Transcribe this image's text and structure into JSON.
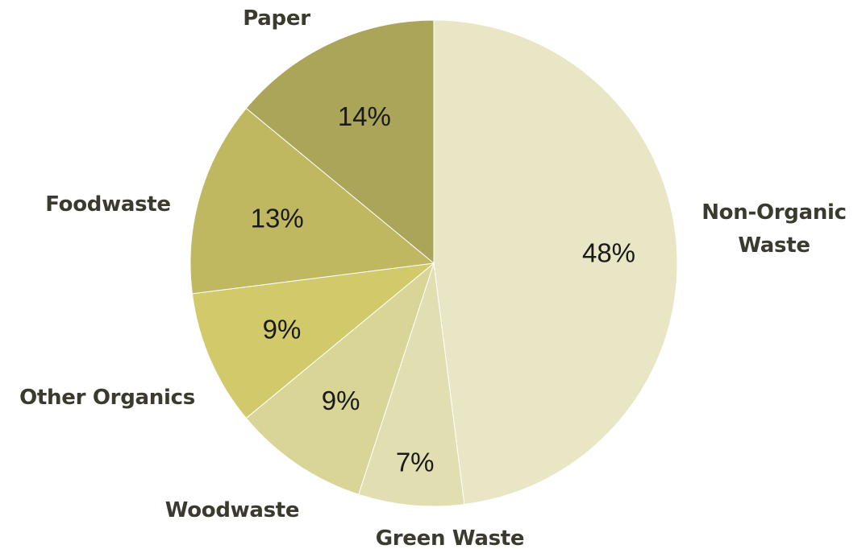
{
  "chart_data": {
    "type": "pie",
    "title": "",
    "start_angle_deg": 0,
    "direction": "clockwise",
    "categories": [
      "Non-Organic Waste",
      "Green Waste",
      "Woodwaste",
      "Other Organics",
      "Foodwaste",
      "Paper"
    ],
    "values": [
      48,
      7,
      9,
      9,
      13,
      14
    ],
    "data_labels": [
      "48%",
      "7%",
      "9%",
      "9%",
      "13%",
      "14%"
    ],
    "category_labels": [
      [
        "Non-Organic",
        "Waste"
      ],
      [
        "Green Waste"
      ],
      [
        "Woodwaste"
      ],
      [
        "Other Organics"
      ],
      [
        "Foodwaste"
      ],
      [
        "Paper"
      ]
    ],
    "colors": [
      "#e8e6c5",
      "#e1dfb2",
      "#d9d597",
      "#d2ca6a",
      "#bfb861",
      "#aba55a"
    ],
    "legend": "none (labels outside slices)"
  }
}
